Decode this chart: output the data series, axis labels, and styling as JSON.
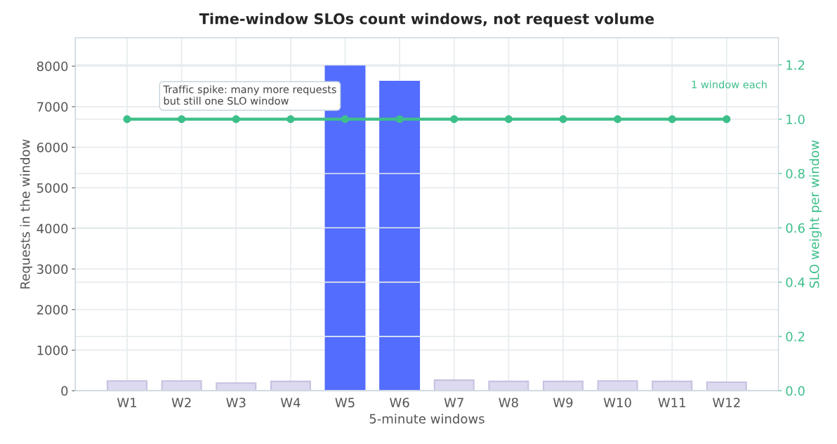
{
  "chart_data": {
    "type": "bar",
    "title": "Time-window SLOs count windows, not request volume",
    "xlabel": "5-minute windows",
    "ylabel": "Requests in the window",
    "y2label": "SLO weight per window",
    "categories": [
      "W1",
      "W2",
      "W3",
      "W4",
      "W5",
      "W6",
      "W7",
      "W8",
      "W9",
      "W10",
      "W11",
      "W12"
    ],
    "series": [
      {
        "colors": [
          "#dcd9f0",
          "#dcd9f0",
          "#dcd9f0",
          "#dcd9f0",
          "#536dfe",
          "#536dfe",
          "#dcd9f0",
          "#dcd9f0",
          "#dcd9f0",
          "#dcd9f0",
          "#dcd9f0",
          "#dcd9f0"
        ],
        "values": [
          240,
          240,
          190,
          230,
          8000,
          7620,
          260,
          230,
          230,
          240,
          230,
          210
        ]
      },
      {
        "type": "line",
        "axis": "y2",
        "color": "#3dbf8a",
        "marker": "circle",
        "values": [
          1,
          1,
          1,
          1,
          1,
          1,
          1,
          1,
          1,
          1,
          1,
          1
        ]
      }
    ],
    "ylim": [
      0,
      8700
    ],
    "yticks": [
      0,
      1000,
      2000,
      3000,
      4000,
      5000,
      6000,
      7000,
      8000
    ],
    "y2lim": [
      0,
      1.3
    ],
    "y2ticks": [
      {
        "value": 0,
        "label": "0.0"
      },
      {
        "value": 0.2,
        "label": "0.2"
      },
      {
        "value": 0.4,
        "label": "0.4"
      },
      {
        "value": 0.6,
        "label": "0.6"
      },
      {
        "value": 0.8,
        "label": "0.8"
      },
      {
        "value": 1.0,
        "label": "1.0"
      },
      {
        "value": 1.2,
        "label": "1.2"
      }
    ],
    "grid": true,
    "annotations": [
      "Traffic spike: many more requests\nbut still one SLO window",
      "1 window each"
    ]
  }
}
